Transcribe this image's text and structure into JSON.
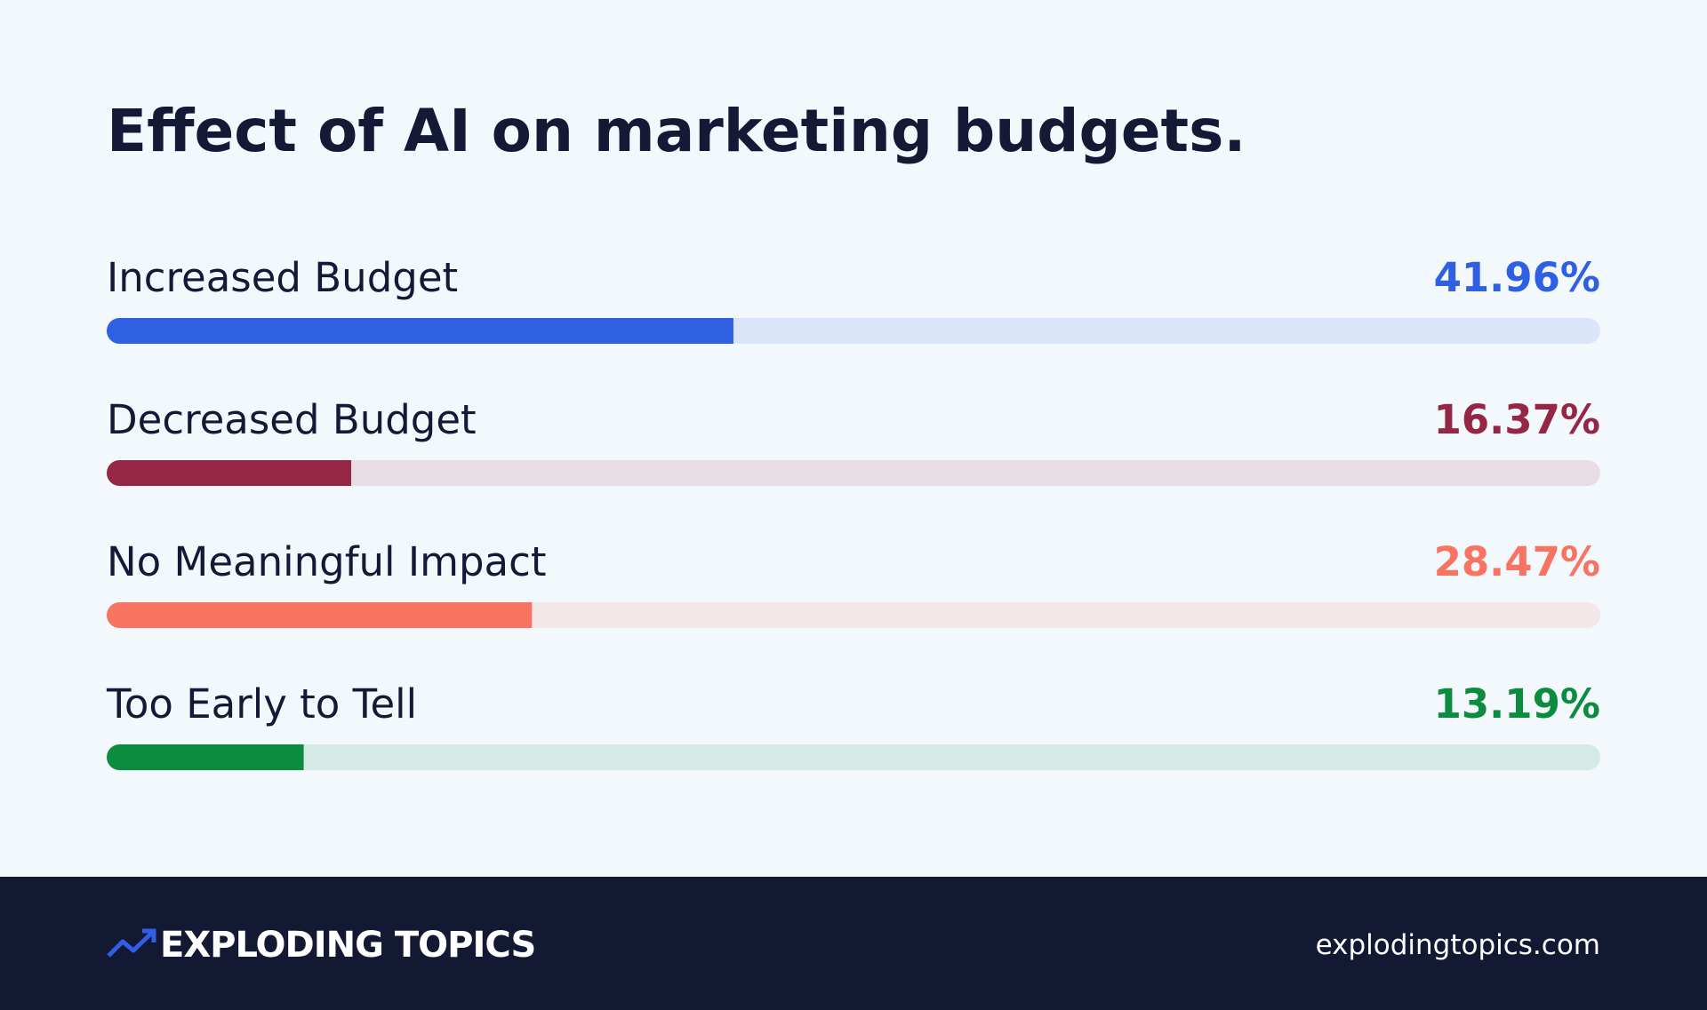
{
  "chart_data": {
    "type": "bar",
    "orientation": "horizontal",
    "title": "Effect of AI on marketing budgets.",
    "categories": [
      "Increased Budget",
      "Decreased Budget",
      "No Meaningful Impact",
      "Too Early to Tell"
    ],
    "values": [
      41.96,
      16.37,
      28.47,
      13.19
    ],
    "value_labels": [
      "41.96%",
      "16.37%",
      "28.47%",
      "13.19%"
    ],
    "colors": [
      "#2f5fe3",
      "#962645",
      "#f87462",
      "#0b8c3f"
    ],
    "xlim": [
      0,
      100
    ]
  },
  "footer": {
    "brand": "EXPLODING TOPICS",
    "url": "explodingtopics.com"
  }
}
